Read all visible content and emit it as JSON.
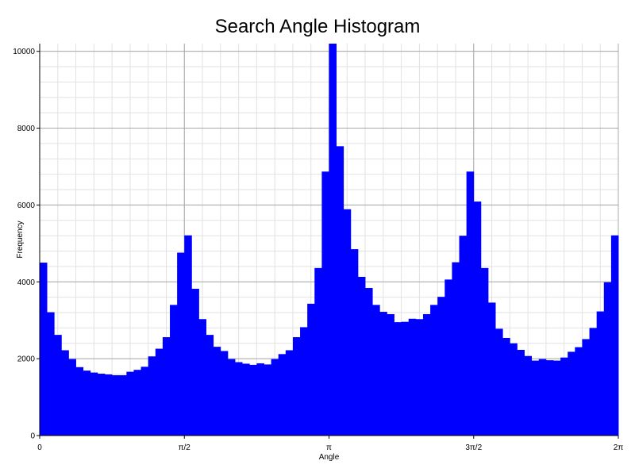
{
  "chart_data": {
    "type": "bar",
    "title": "Search Angle Histogram",
    "xlabel": "Angle",
    "ylabel": "Frequency",
    "xlim": [
      0,
      6.283185
    ],
    "ylim": [
      0,
      10200
    ],
    "x_ticks": [
      {
        "value": 0,
        "label": "0"
      },
      {
        "value": 1.570796,
        "label": "π/2"
      },
      {
        "value": 3.141593,
        "label": "π"
      },
      {
        "value": 4.712389,
        "label": "3π/2"
      },
      {
        "value": 6.283185,
        "label": "2π"
      }
    ],
    "y_ticks": [
      {
        "value": 0,
        "label": "0"
      },
      {
        "value": 2000,
        "label": "2000"
      },
      {
        "value": 4000,
        "label": "4000"
      },
      {
        "value": 6000,
        "label": "6000"
      },
      {
        "value": 8000,
        "label": "8000"
      },
      {
        "value": 10000,
        "label": "10000"
      }
    ],
    "grid": true,
    "bar_color": "#0000ff",
    "values": [
      4500,
      3210,
      2620,
      2220,
      1990,
      1780,
      1690,
      1640,
      1610,
      1590,
      1570,
      1570,
      1660,
      1710,
      1790,
      2060,
      2260,
      2560,
      3400,
      4760,
      5210,
      3820,
      3030,
      2620,
      2310,
      2200,
      1990,
      1910,
      1870,
      1840,
      1880,
      1850,
      1990,
      2120,
      2220,
      2560,
      2820,
      3430,
      4360,
      6870,
      10200,
      7530,
      5890,
      4850,
      4130,
      3840,
      3400,
      3220,
      3160,
      2950,
      2960,
      3040,
      3030,
      3160,
      3400,
      3610,
      4060,
      4510,
      5200,
      6870,
      6090,
      4360,
      3460,
      2780,
      2540,
      2400,
      2230,
      2070,
      1950,
      1990,
      1960,
      1950,
      2030,
      2180,
      2300,
      2510,
      2800,
      3230,
      3990,
      5210
    ]
  }
}
